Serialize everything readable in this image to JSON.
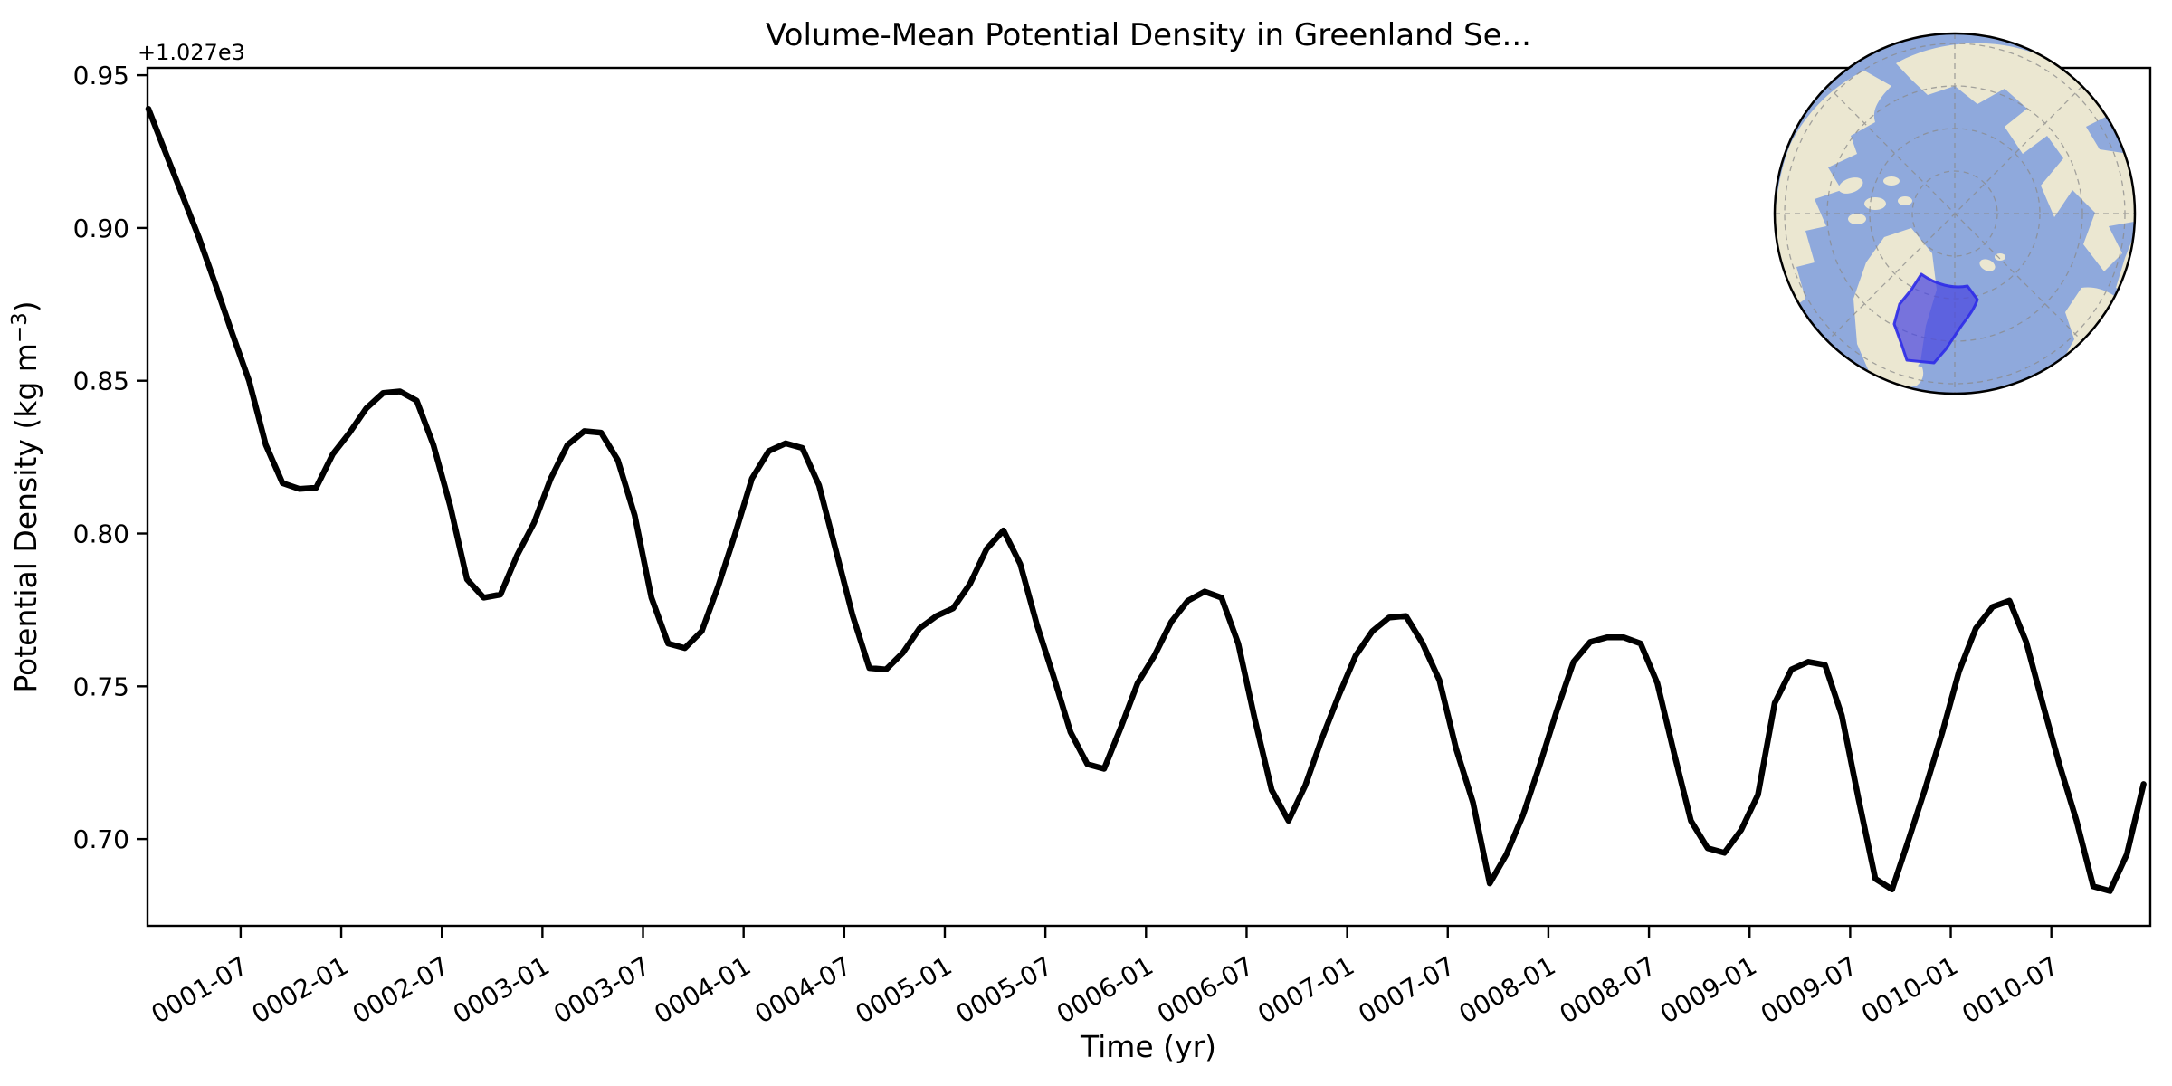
{
  "figure": {
    "background": "#ffffff"
  },
  "chart_data": {
    "type": "line",
    "title": "Volume-Mean Potential Density in Greenland Se...",
    "xlabel": "Time (yr)",
    "ylabel": "Potential Density (kg m⁻³)",
    "ylabel_parts": {
      "base": "Potential Density (kg m",
      "sup": "−3",
      "close": ")"
    },
    "offset_label": "+1.027e3",
    "offset_value": 1027,
    "offset_note": "y tick values are relative to +1.027e3 kg m^-3",
    "grid": false,
    "legend": null,
    "ylim": [
      0.6716,
      0.9524
    ],
    "y_tick_labels": [
      "0.70",
      "0.75",
      "0.80",
      "0.85",
      "0.90",
      "0.95"
    ],
    "x_tick_labels": [
      "0001-07",
      "0002-01",
      "0002-07",
      "0003-01",
      "0003-07",
      "0004-01",
      "0004-07",
      "0005-01",
      "0005-07",
      "0006-01",
      "0006-07",
      "0007-01",
      "0007-07",
      "0008-01",
      "0008-07",
      "0009-01",
      "0009-07",
      "0010-01",
      "0010-07"
    ],
    "x_start": "0001-01",
    "x_freq": "monthly",
    "x_end": "0010-12",
    "series": [
      {
        "name": "volume-mean potential density",
        "color": "#000000",
        "linewidth": 6.5,
        "values": [
          0.939,
          0.925,
          0.911,
          0.897,
          0.8815,
          0.8655,
          0.85,
          0.829,
          0.8165,
          0.8146,
          0.815,
          0.826,
          0.833,
          0.841,
          0.846,
          0.8465,
          0.8435,
          0.829,
          0.809,
          0.785,
          0.779,
          0.78,
          0.793,
          0.8035,
          0.818,
          0.829,
          0.8335,
          0.833,
          0.824,
          0.806,
          0.779,
          0.764,
          0.7625,
          0.768,
          0.783,
          0.8,
          0.818,
          0.827,
          0.8295,
          0.828,
          0.8158,
          0.7945,
          0.7732,
          0.756,
          0.7555,
          0.761,
          0.769,
          0.773,
          0.7755,
          0.7835,
          0.795,
          0.801,
          0.79,
          0.77,
          0.753,
          0.735,
          0.7245,
          0.723,
          0.7365,
          0.751,
          0.76,
          0.771,
          0.778,
          0.781,
          0.779,
          0.764,
          0.739,
          0.716,
          0.706,
          0.7175,
          0.733,
          0.747,
          0.76,
          0.768,
          0.7725,
          0.773,
          0.764,
          0.752,
          0.7295,
          0.712,
          0.6855,
          0.695,
          0.708,
          0.7245,
          0.742,
          0.758,
          0.7645,
          0.766,
          0.766,
          0.764,
          0.751,
          0.728,
          0.706,
          0.697,
          0.6955,
          0.703,
          0.7145,
          0.7445,
          0.7555,
          0.758,
          0.757,
          0.7405,
          0.713,
          0.687,
          0.6835,
          0.7,
          0.717,
          0.735,
          0.755,
          0.769,
          0.776,
          0.778,
          0.7645,
          0.744,
          0.724,
          0.706,
          0.6845,
          0.683,
          0.695,
          0.718
        ]
      }
    ]
  },
  "inset_map": {
    "projection": "north-polar-stereographic",
    "ocean_color": "#8fa9dc",
    "land_color": "#ebe7d1",
    "graticule_color": "#8a8a8a",
    "region_fill": "#4a46e0",
    "region_stroke": "#2e2be8",
    "border_color": "#000000"
  }
}
